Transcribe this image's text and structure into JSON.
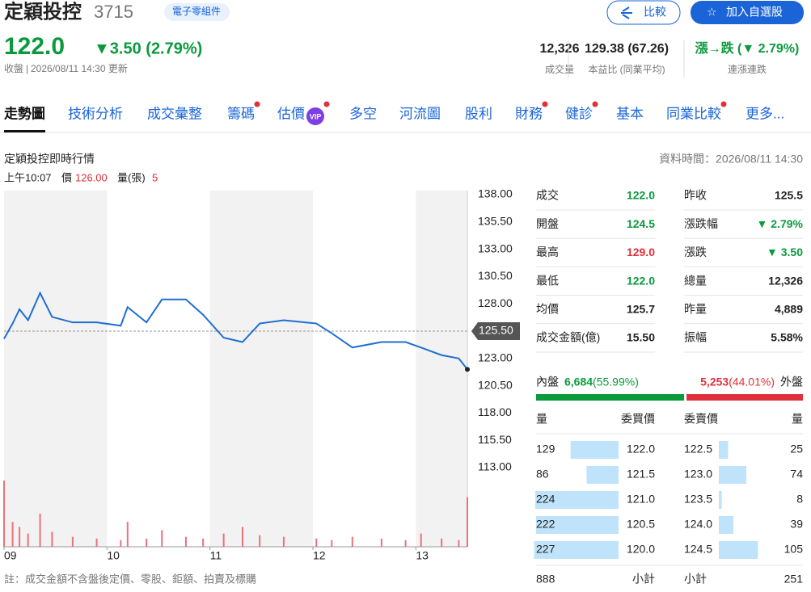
{
  "header": {
    "name": "定穎投控",
    "code": "3715",
    "industry": "電子零組件",
    "compare": "比較",
    "watchlist": "加入自選股",
    "price": "122.0",
    "change": "▼3.50 (2.79%)",
    "status": "收盤",
    "updated": "2026/08/11 14:30 更新"
  },
  "summary": [
    {
      "value": "12,326",
      "label": "成交量"
    },
    {
      "value": "129.38 (67.26)",
      "label": "本益比 (同業平均)"
    },
    {
      "value": "漲→跌 (▼ 2.79%)",
      "label": "連漲連跌"
    }
  ],
  "tabs": [
    {
      "label": "走勢圖",
      "active": true
    },
    {
      "label": "技術分析"
    },
    {
      "label": "成交彙整"
    },
    {
      "label": "籌碼",
      "dot": true
    },
    {
      "label": "估價",
      "badge": "VIP",
      "dot": true
    },
    {
      "label": "多空"
    },
    {
      "label": "河流圖"
    },
    {
      "label": "股利"
    },
    {
      "label": "財務",
      "dot": true
    },
    {
      "label": "健診",
      "dot": true
    },
    {
      "label": "基本"
    },
    {
      "label": "同業比較",
      "dot": true
    },
    {
      "label": "更多..."
    }
  ],
  "section": {
    "title": "定穎投控即時行情",
    "data_time": "資料時間：2026/08/11 14:30"
  },
  "hover": {
    "time": "上午10:07",
    "price_label": "價",
    "price": "126.00",
    "volume_label": "量(張)",
    "volume": "5"
  },
  "chart_data": {
    "type": "line",
    "x": [
      540,
      545,
      549,
      554,
      561,
      568,
      580,
      594,
      608,
      612,
      623,
      632,
      646,
      656,
      668,
      679,
      689,
      703,
      722,
      731,
      743,
      760,
      774,
      783,
      795,
      805,
      810
    ],
    "series": [
      {
        "name": "成交價",
        "color": "#1f6fd1",
        "values": [
          124.8,
          126.2,
          127.5,
          126.5,
          129.0,
          126.8,
          126.3,
          126.3,
          126.0,
          127.7,
          126.3,
          128.4,
          128.4,
          127.0,
          124.9,
          124.5,
          126.2,
          126.5,
          126.2,
          125.3,
          124.0,
          124.5,
          124.5,
          124.0,
          123.3,
          123.0,
          122.0
        ]
      }
    ],
    "volume": {
      "color": "#e8737b",
      "values": [
        400,
        150,
        120,
        80,
        200,
        90,
        60,
        50,
        40,
        150,
        50,
        100,
        60,
        50,
        80,
        120,
        70,
        60,
        50,
        40,
        60,
        50,
        40,
        80,
        50,
        40,
        300
      ]
    },
    "reference": 125.5,
    "xlim": [
      540,
      810
    ],
    "xticks": [
      {
        "value": 540,
        "label": "09"
      },
      {
        "value": 600,
        "label": "10"
      },
      {
        "value": 660,
        "label": "11"
      },
      {
        "value": 720,
        "label": "12"
      },
      {
        "value": 780,
        "label": "13"
      }
    ],
    "ylim": [
      113,
      138
    ],
    "yticks": [
      {
        "value": 138,
        "label": "138.00"
      },
      {
        "value": 135.5,
        "label": "135.50"
      },
      {
        "value": 133,
        "label": "133.00"
      },
      {
        "value": 130.5,
        "label": "130.50"
      },
      {
        "value": 128,
        "label": "128.00"
      },
      {
        "value": 125.5,
        "label": "125.50"
      },
      {
        "value": 123,
        "label": "123.00"
      },
      {
        "value": 120.5,
        "label": "120.50"
      },
      {
        "value": 118,
        "label": "118.00"
      },
      {
        "value": 115.5,
        "label": "115.50"
      },
      {
        "value": 113,
        "label": "113.00"
      }
    ]
  },
  "stats": {
    "left": [
      {
        "label": "成交",
        "value": "122.0",
        "tone": "down"
      },
      {
        "label": "開盤",
        "value": "124.5",
        "tone": "down"
      },
      {
        "label": "最高",
        "value": "129.0",
        "tone": "up"
      },
      {
        "label": "最低",
        "value": "122.0",
        "tone": "down"
      },
      {
        "label": "均價",
        "value": "125.7"
      },
      {
        "label": "成交金額(億)",
        "value": "15.50"
      }
    ],
    "right": [
      {
        "label": "昨收",
        "value": "125.5"
      },
      {
        "label": "漲跌幅",
        "value": "▼ 2.79%",
        "tone": "down"
      },
      {
        "label": "漲跌",
        "value": "▼ 3.50",
        "tone": "down"
      },
      {
        "label": "總量",
        "value": "12,326"
      },
      {
        "label": "昨量",
        "value": "4,889"
      },
      {
        "label": "振幅",
        "value": "5.58%"
      }
    ]
  },
  "order_balance": {
    "inner_label": "內盤",
    "inner_volume": "6,684",
    "inner_percent": 55.99,
    "inner_percent_label": "(55.99%)",
    "outer_label": "外盤",
    "outer_volume": "5,253",
    "outer_percent": 44.01,
    "outer_percent_label": "(44.01%)"
  },
  "order_book": {
    "headers": [
      "量",
      "委買價",
      "委賣價",
      "量"
    ],
    "bids": [
      {
        "qty": 129,
        "price": "122.0"
      },
      {
        "qty": 86,
        "price": "121.5"
      },
      {
        "qty": 224,
        "price": "121.0"
      },
      {
        "qty": 222,
        "price": "120.5"
      },
      {
        "qty": 227,
        "price": "120.0"
      }
    ],
    "asks": [
      {
        "price": "122.5",
        "qty": 25
      },
      {
        "price": "123.0",
        "qty": 74
      },
      {
        "price": "123.5",
        "qty": 8
      },
      {
        "price": "124.0",
        "qty": 39
      },
      {
        "price": "124.5",
        "qty": 105
      }
    ],
    "bid_total": 888,
    "ask_total": 251,
    "subtotal_label": "小計"
  },
  "note": "註：成交金額不含盤後定價、零股、鉅額、拍賣及標購"
}
